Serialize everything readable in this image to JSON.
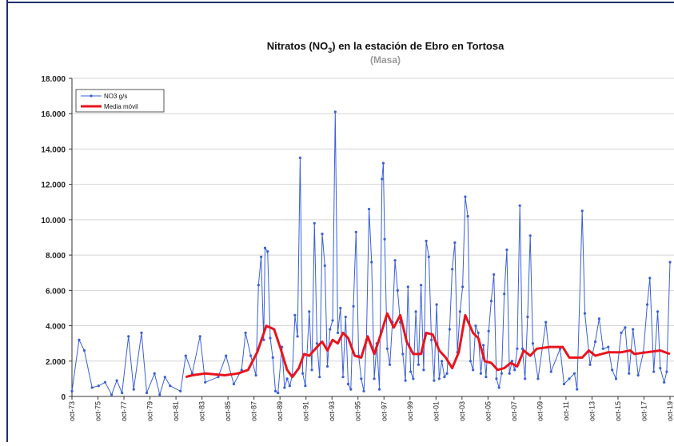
{
  "chart_data": {
    "type": "line",
    "title_parts": [
      "Nitratos (NO",
      "3",
      ") en la estación de Ebro en Tortosa"
    ],
    "subtitle": "(Masa)",
    "xlim": [
      1973.75,
      2019.75
    ],
    "xticks": [
      {
        "value": 1973.75,
        "label": "oct-73"
      },
      {
        "value": 1975.75,
        "label": "oct-75"
      },
      {
        "value": 1977.75,
        "label": "oct-77"
      },
      {
        "value": 1979.75,
        "label": "oct-79"
      },
      {
        "value": 1981.75,
        "label": "oct-81"
      },
      {
        "value": 1983.75,
        "label": "oct-83"
      },
      {
        "value": 1985.75,
        "label": "oct-85"
      },
      {
        "value": 1987.75,
        "label": "oct-87"
      },
      {
        "value": 1989.75,
        "label": "oct-89"
      },
      {
        "value": 1991.75,
        "label": "oct-91"
      },
      {
        "value": 1993.75,
        "label": "oct-93"
      },
      {
        "value": 1995.75,
        "label": "oct-95"
      },
      {
        "value": 1997.75,
        "label": "oct-97"
      },
      {
        "value": 1999.75,
        "label": "oct-99"
      },
      {
        "value": 2001.75,
        "label": "oct-01"
      },
      {
        "value": 2003.75,
        "label": "oct-03"
      },
      {
        "value": 2005.75,
        "label": "oct-05"
      },
      {
        "value": 2007.75,
        "label": "oct-07"
      },
      {
        "value": 2009.75,
        "label": "oct-09"
      },
      {
        "value": 2011.75,
        "label": "oct-11"
      },
      {
        "value": 2013.75,
        "label": "oct-13"
      },
      {
        "value": 2015.75,
        "label": "oct-15"
      },
      {
        "value": 2017.75,
        "label": "oct-17"
      },
      {
        "value": 2019.75,
        "label": "oct-19"
      }
    ],
    "ylim": [
      0,
      18000
    ],
    "yticks": [
      0,
      {
        "value": 2000,
        "label": "2.000"
      },
      {
        "value": 4000,
        "label": "4.000"
      },
      {
        "value": 6000,
        "label": "6.000"
      },
      {
        "value": 8000,
        "label": "8.000"
      },
      {
        "value": 10000,
        "label": "10.000"
      },
      {
        "value": 12000,
        "label": "12.000"
      },
      {
        "value": 14000,
        "label": "14.000"
      },
      {
        "value": 16000,
        "label": "16.000"
      },
      {
        "value": 18000,
        "label": "18.000"
      }
    ],
    "legend": "top-left",
    "series": [
      {
        "name": "NO3 g/s",
        "color": "#3a5fd9",
        "markers": true,
        "width": 1,
        "x": [
          1973.75,
          1974.3,
          1974.7,
          1975.3,
          1975.8,
          1976.3,
          1976.8,
          1977.2,
          1977.6,
          1978.1,
          1978.5,
          1979.1,
          1979.5,
          1980.1,
          1980.5,
          1980.9,
          1981.3,
          1982.1,
          1982.5,
          1983.0,
          1983.6,
          1984.0,
          1985.0,
          1985.6,
          1986.2,
          1986.8,
          1987.1,
          1987.5,
          1987.9,
          1988.1,
          1988.3,
          1988.5,
          1988.6,
          1988.8,
          1989.0,
          1989.2,
          1989.4,
          1989.6,
          1989.9,
          1990.1,
          1990.3,
          1990.5,
          1990.7,
          1990.9,
          1991.1,
          1991.3,
          1991.5,
          1991.7,
          1992.0,
          1992.2,
          1992.4,
          1992.6,
          1992.8,
          1993.0,
          1993.2,
          1993.4,
          1993.6,
          1993.8,
          1994.0,
          1994.2,
          1994.4,
          1994.6,
          1994.8,
          1995.0,
          1995.2,
          1995.4,
          1995.6,
          1995.8,
          1996.0,
          1996.2,
          1996.4,
          1996.6,
          1996.8,
          1997.0,
          1997.2,
          1997.4,
          1997.6,
          1997.7,
          1997.8,
          1998.0,
          1998.2,
          1998.4,
          1998.6,
          1998.8,
          1999.0,
          1999.2,
          1999.4,
          1999.6,
          1999.8,
          2000.0,
          2000.2,
          2000.4,
          2000.6,
          2000.8,
          2001.0,
          2001.2,
          2001.4,
          2001.6,
          2001.8,
          2002.0,
          2002.2,
          2002.4,
          2002.6,
          2002.8,
          2003.0,
          2003.2,
          2003.4,
          2003.6,
          2003.8,
          2004.0,
          2004.2,
          2004.4,
          2004.6,
          2004.8,
          2005.0,
          2005.2,
          2005.4,
          2005.6,
          2005.8,
          2006.0,
          2006.2,
          2006.4,
          2006.6,
          2006.8,
          2007.0,
          2007.2,
          2007.4,
          2007.6,
          2007.8,
          2008.0,
          2008.2,
          2008.4,
          2008.6,
          2008.8,
          2009.0,
          2009.2,
          2009.6,
          2010.2,
          2010.6,
          2011.3,
          2011.6,
          2012.0,
          2012.4,
          2012.6,
          2013.0,
          2013.2,
          2013.6,
          2014.0,
          2014.3,
          2014.6,
          2015.0,
          2015.3,
          2015.6,
          2016.0,
          2016.3,
          2016.6,
          2016.9,
          2017.3,
          2017.7,
          2018.0,
          2018.2,
          2018.5,
          2018.8,
          2019.0,
          2019.3,
          2019.5,
          2019.75
        ],
        "values": [
          300,
          3200,
          2600,
          500,
          600,
          800,
          100,
          900,
          200,
          3400,
          400,
          3600,
          200,
          1300,
          100,
          1100,
          600,
          300,
          2300,
          1300,
          3400,
          800,
          1100,
          2300,
          700,
          1500,
          3600,
          2300,
          1200,
          6300,
          7900,
          3200,
          8400,
          8200,
          3300,
          2200,
          300,
          200,
          2800,
          500,
          1000,
          600,
          1200,
          4600,
          3400,
          13500,
          1300,
          600,
          4800,
          1500,
          9800,
          3000,
          1100,
          9200,
          7400,
          1700,
          3800,
          4300,
          16100,
          3600,
          5000,
          1100,
          4500,
          700,
          400,
          5100,
          9300,
          2300,
          1000,
          300,
          3200,
          10600,
          7600,
          1000,
          3000,
          400,
          12300,
          13200,
          8900,
          2700,
          1800,
          4200,
          7700,
          6000,
          4200,
          2400,
          900,
          6200,
          1400,
          1000,
          4800,
          1800,
          6300,
          1500,
          8800,
          7900,
          3200,
          900,
          5200,
          1000,
          2000,
          1100,
          1300,
          3800,
          7200,
          8700,
          2500,
          4800,
          6200,
          11300,
          10200,
          2000,
          1500,
          4000,
          3600,
          1300,
          2900,
          1100,
          3700,
          5400,
          6900,
          1000,
          500,
          1300,
          5800,
          8300,
          1300,
          2000,
          1500,
          2700,
          10800,
          2700,
          1000,
          4500,
          9100,
          3000,
          1000,
          4200,
          1400,
          2700,
          700,
          1000,
          1300,
          400,
          10500,
          4700,
          1800,
          3100,
          4400,
          2700,
          2800,
          1500,
          1000,
          3600,
          3900,
          1300,
          3800,
          1200,
          2500,
          5200,
          6700,
          1400,
          4800,
          1600,
          800,
          1400,
          7600
        ]
      },
      {
        "name": "Media móvil",
        "color": "#e8141c",
        "markers": false,
        "width": 3,
        "x": [
          1982.5,
          1983,
          1984,
          1985.5,
          1986.5,
          1987.3,
          1988,
          1988.7,
          1989.3,
          1989.8,
          1990.3,
          1990.7,
          1991.2,
          1991.6,
          1992,
          1992.6,
          1993,
          1993.4,
          1993.8,
          1994.2,
          1994.6,
          1995,
          1995.5,
          1996,
          1996.5,
          1997,
          1997.5,
          1998,
          1998.5,
          1999,
          1999.5,
          2000,
          2000.6,
          2001,
          2001.5,
          2002,
          2002.5,
          2003,
          2003.5,
          2004,
          2004.6,
          2005,
          2005.5,
          2006,
          2006.5,
          2007,
          2007.5,
          2008,
          2008.5,
          2009,
          2009.5,
          2010.5,
          2011.5,
          2012,
          2013,
          2013.5,
          2014,
          2015,
          2016,
          2016.7,
          2017,
          2018,
          2019,
          2019.75
        ],
        "values": [
          1100,
          1200,
          1300,
          1200,
          1300,
          1500,
          2500,
          4000,
          3800,
          2700,
          1500,
          1100,
          1600,
          2400,
          2300,
          2800,
          3100,
          2600,
          3200,
          3000,
          3600,
          3300,
          2300,
          2200,
          3400,
          2400,
          3500,
          4700,
          3900,
          4600,
          3100,
          2400,
          2400,
          3600,
          3500,
          2600,
          2200,
          1600,
          2500,
          4600,
          3600,
          3300,
          2000,
          1900,
          1500,
          1600,
          1900,
          1700,
          2600,
          2300,
          2700,
          2800,
          2800,
          2200,
          2200,
          2600,
          2300,
          2500,
          2500,
          2600,
          2400,
          2500,
          2600,
          2400
        ]
      }
    ]
  }
}
